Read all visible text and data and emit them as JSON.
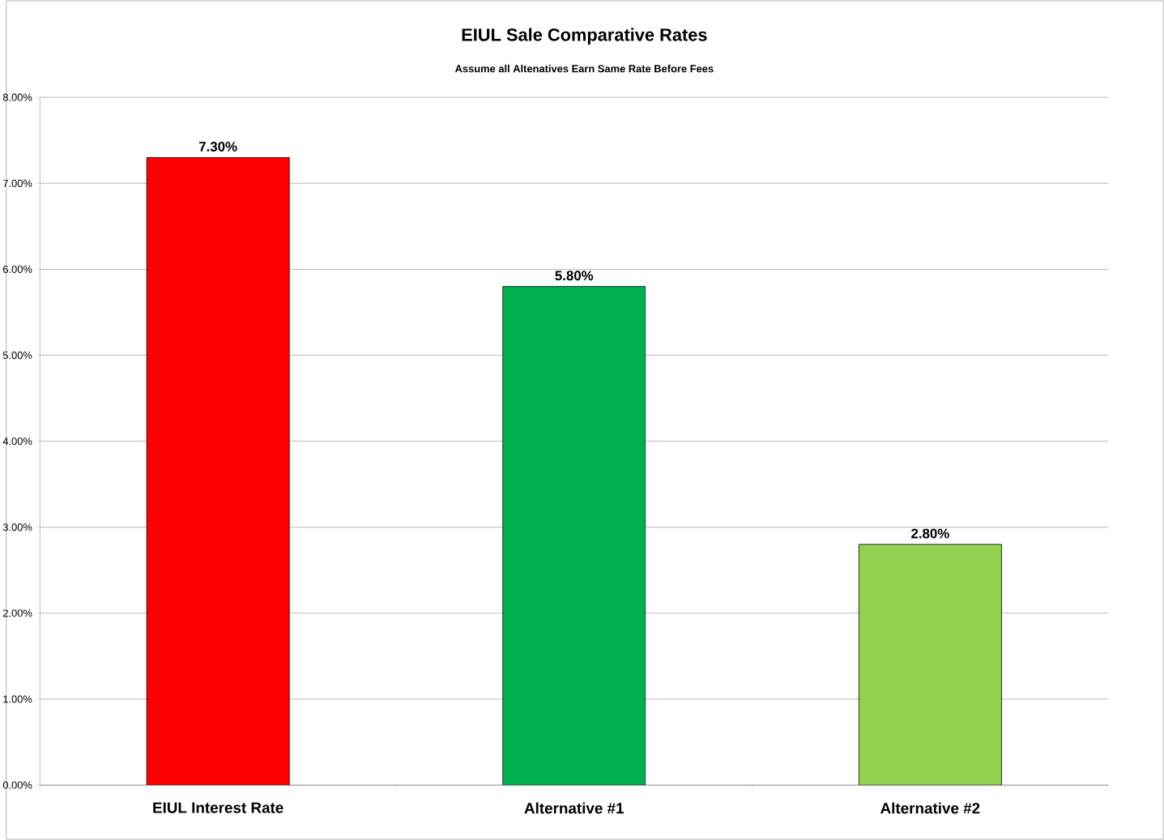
{
  "chart_data": {
    "type": "bar",
    "title": "EIUL Sale Comparative Rates",
    "subtitle": "Assume all Altenatives Earn Same Rate Before Fees",
    "categories": [
      "EIUL Interest Rate",
      "Alternative #1",
      "Alternative #2"
    ],
    "values": [
      7.3,
      5.8,
      2.8
    ],
    "colors": [
      "#ff0000",
      "#00b050",
      "#92d050"
    ],
    "value_labels": [
      "7.30%",
      "5.80%",
      "2.80%"
    ],
    "ylim": [
      0,
      8
    ],
    "yticks": [
      {
        "value": 0,
        "label": "0.00%"
      },
      {
        "value": 1,
        "label": "1.00%"
      },
      {
        "value": 2,
        "label": "2.00%"
      },
      {
        "value": 3,
        "label": "3.00%"
      },
      {
        "value": 4,
        "label": "4.00%"
      },
      {
        "value": 5,
        "label": "5.00%"
      },
      {
        "value": 6,
        "label": "6.00%"
      },
      {
        "value": 7,
        "label": "7.00%"
      },
      {
        "value": 8,
        "label": "8.00%"
      }
    ],
    "grid": "y"
  }
}
